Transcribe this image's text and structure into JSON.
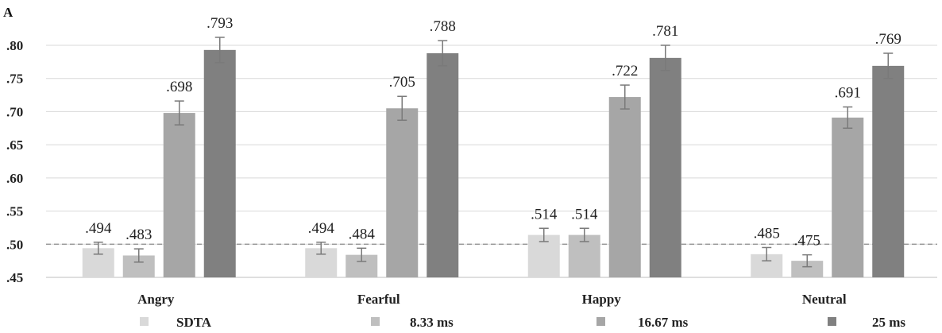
{
  "panel_label": "A",
  "chart_data": {
    "type": "bar",
    "categories": [
      "Angry",
      "Fearful",
      "Happy",
      "Neutral"
    ],
    "series": [
      {
        "name": "SDTA",
        "color": "#d9d9d9",
        "values": [
          0.494,
          0.494,
          0.514,
          0.485
        ],
        "errors": [
          0.009,
          0.009,
          0.01,
          0.01
        ]
      },
      {
        "name": "8.33 ms",
        "color": "#bfbfbf",
        "values": [
          0.483,
          0.484,
          0.514,
          0.475
        ],
        "errors": [
          0.01,
          0.01,
          0.01,
          0.009
        ]
      },
      {
        "name": "16.67 ms",
        "color": "#a6a6a6",
        "values": [
          0.698,
          0.705,
          0.722,
          0.691
        ],
        "errors": [
          0.018,
          0.018,
          0.018,
          0.016
        ]
      },
      {
        "name": "25 ms",
        "color": "#808080",
        "values": [
          0.793,
          0.788,
          0.781,
          0.769
        ],
        "errors": [
          0.019,
          0.019,
          0.019,
          0.019
        ]
      }
    ],
    "data_labels": [
      [
        ".494",
        ".494",
        ".514",
        ".485"
      ],
      [
        ".483",
        ".484",
        ".514",
        ".475"
      ],
      [
        ".698",
        ".705",
        ".722",
        ".691"
      ],
      [
        ".793",
        ".788",
        ".781",
        ".769"
      ]
    ],
    "yticks": [
      ".45",
      ".50",
      ".55",
      ".60",
      ".65",
      ".70",
      ".75",
      ".80"
    ],
    "ytick_values": [
      0.45,
      0.5,
      0.55,
      0.6,
      0.65,
      0.7,
      0.75,
      0.8
    ],
    "ylim": [
      0.45,
      0.8
    ],
    "reference_line": 0.5,
    "grid": true,
    "legend_position": "bottom"
  }
}
